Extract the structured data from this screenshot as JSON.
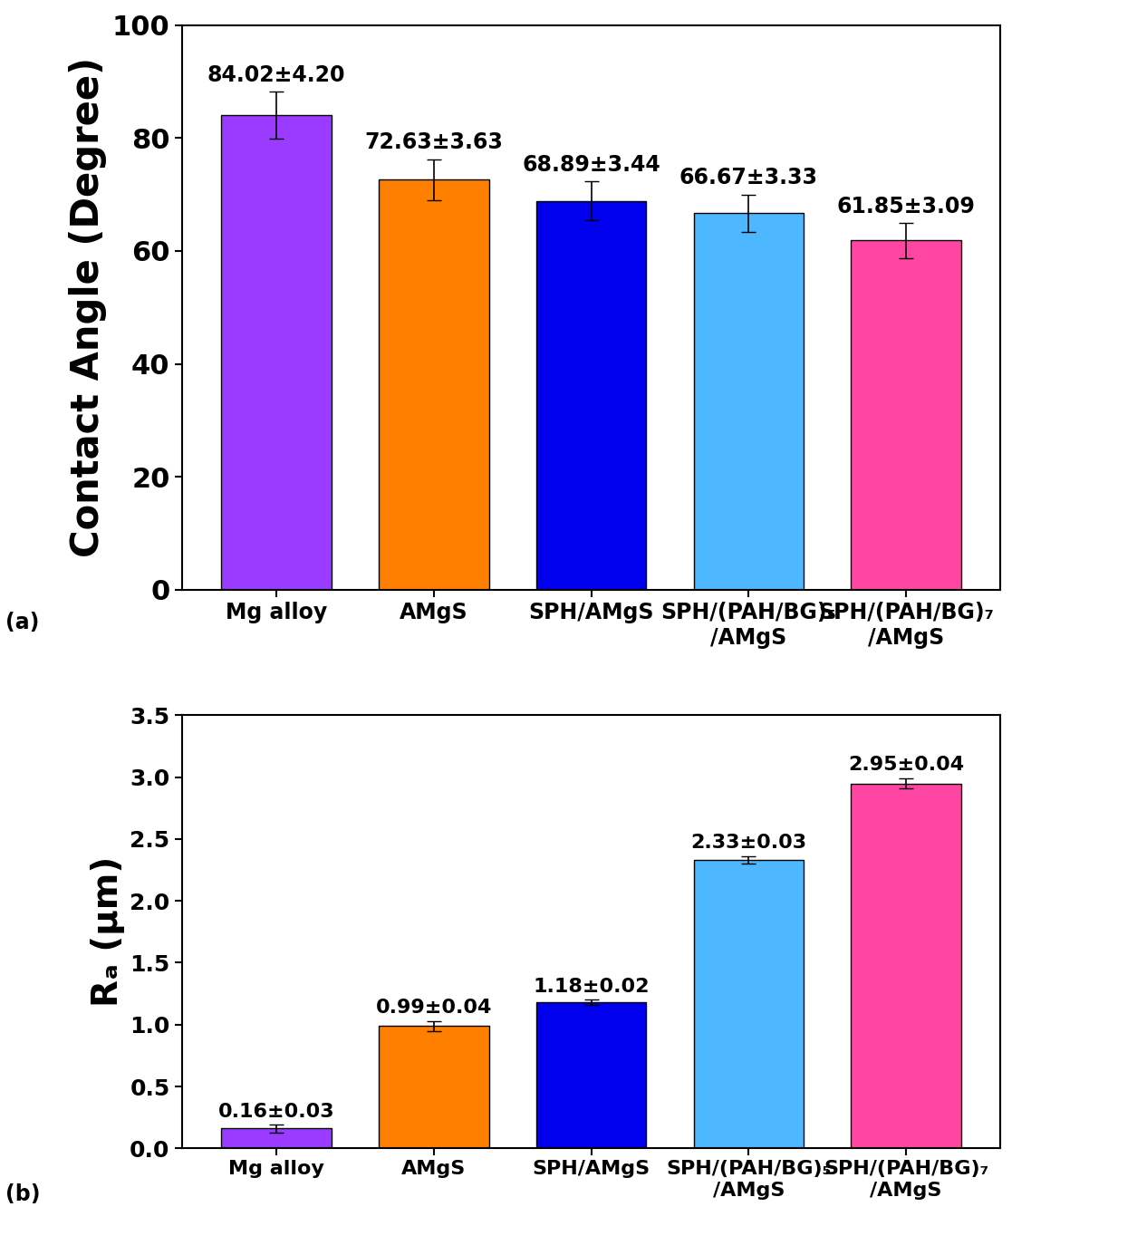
{
  "chart_data": [
    {
      "type": "bar",
      "annotations": [
        "(a)"
      ],
      "y_label": "Contact Angle (Degree)",
      "categories": [
        "Mg alloy",
        "AMgS",
        "SPH/AMgS",
        "SPH/(PAH/BG)₅\n/AMgS",
        "SPH/(PAH/BG)₇\n/AMgS"
      ],
      "values": [
        84.02,
        72.63,
        68.89,
        66.67,
        61.85
      ],
      "errors": [
        4.2,
        3.63,
        3.44,
        3.33,
        3.09
      ],
      "value_labels": [
        "84.02±4.20",
        "72.63±3.63",
        "68.89±3.44",
        "66.67±3.33",
        "61.85±3.09"
      ],
      "data_labels": true,
      "colors": [
        "#9b3bff",
        "#ff7f00",
        "#0000ee",
        "#4db8ff",
        "#ff46a2"
      ],
      "ylim": [
        0,
        100
      ],
      "yticks": [
        0,
        20,
        40,
        60,
        80,
        100
      ]
    },
    {
      "type": "bar",
      "annotations": [
        "(b)"
      ],
      "y_label": "Rₐ (μm)",
      "categories": [
        "Mg alloy",
        "AMgS",
        "SPH/AMgS",
        "SPH/(PAH/BG)₅\n/AMgS",
        "SPH/(PAH/BG)₇\n/AMgS"
      ],
      "values": [
        0.16,
        0.99,
        1.18,
        2.33,
        2.95
      ],
      "errors": [
        0.03,
        0.04,
        0.02,
        0.03,
        0.04
      ],
      "value_labels": [
        "0.16±0.03",
        "0.99±0.04",
        "1.18±0.02",
        "2.33±0.03",
        "2.95±0.04"
      ],
      "data_labels": true,
      "colors": [
        "#9b3bff",
        "#ff7f00",
        "#0000ee",
        "#4db8ff",
        "#ff46a2"
      ],
      "ylim": [
        0,
        3.5
      ],
      "yticks": [
        {
          "value": 0,
          "label": "0.0"
        },
        0.5,
        {
          "value": 1,
          "label": "1.0"
        },
        1.5,
        {
          "value": 2,
          "label": "2.0"
        },
        2.5,
        {
          "value": 3,
          "label": "3.0"
        },
        3.5
      ]
    }
  ]
}
